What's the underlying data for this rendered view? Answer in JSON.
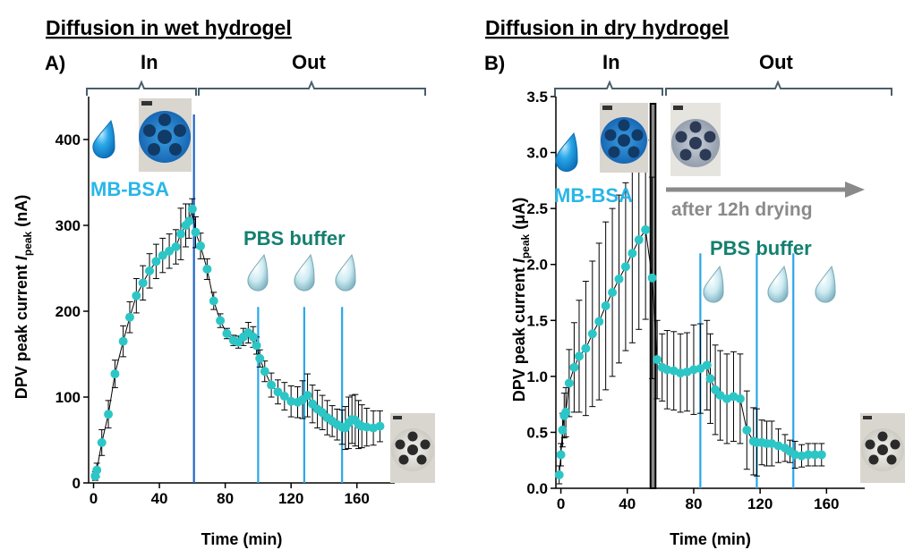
{
  "colors": {
    "marker": "#2cc6c6",
    "errorbar": "#000000",
    "line_in": "#1f66c8",
    "line_buffer": "#2aa7e8",
    "mbsa_text": "#29b6e8",
    "pbs_text": "#14806f",
    "brace": "#4a5e6a",
    "arrow": "#8a8a8a",
    "drop": "#1f9fe0",
    "drop_light": "#bfe4ee"
  },
  "panels": [
    {
      "title": "Diffusion in wet hydrogel",
      "letter": "A)",
      "phase_in": "In",
      "phase_out": "Out",
      "solution_label": "MB-BSA",
      "buffer_label": "PBS buffer"
    },
    {
      "title": "Diffusion in dry hydrogel",
      "letter": "B)",
      "phase_in": "In",
      "phase_out": "Out",
      "solution_label": "MB-BSA",
      "buffer_label": "PBS buffer",
      "drying_label": "after 12h drying"
    }
  ],
  "chart_data": [
    {
      "type": "scatter",
      "xlabel": "Time (min)",
      "ylabel_main": "DPV peak current ",
      "ylabel_italic": "I",
      "ylabel_sub": "peak",
      "ylabel_unit": " (nA)",
      "xlim": [
        -3,
        183
      ],
      "ylim": [
        0,
        450
      ],
      "xticks": [
        0,
        40,
        80,
        120,
        160
      ],
      "yticks": [
        0,
        100,
        200,
        300,
        400
      ],
      "vlines": [
        61,
        100,
        128,
        151
      ],
      "series": [
        {
          "x": [
            1,
            2,
            5,
            9,
            13,
            18,
            22,
            26,
            30,
            34,
            38,
            42,
            46,
            50,
            53,
            56,
            58,
            60,
            62,
            65,
            69,
            73,
            77,
            81,
            85,
            88,
            91,
            94,
            97,
            99,
            101,
            104,
            108,
            112,
            116,
            120,
            124,
            127,
            130,
            133,
            136,
            139,
            142,
            145,
            148,
            151,
            153,
            155,
            157,
            159,
            161,
            163,
            166,
            170,
            174
          ],
          "y": [
            8,
            15,
            47,
            80,
            127,
            165,
            193,
            218,
            233,
            247,
            258,
            265,
            270,
            275,
            290,
            300,
            305,
            319,
            292,
            276,
            249,
            212,
            189,
            174,
            166,
            164,
            170,
            175,
            170,
            160,
            145,
            130,
            114,
            106,
            101,
            95,
            94,
            97,
            102,
            92,
            86,
            82,
            76,
            72,
            68,
            65,
            64,
            70,
            74,
            73,
            68,
            66,
            65,
            64,
            66
          ],
          "err": [
            5,
            8,
            15,
            16,
            16,
            18,
            18,
            20,
            20,
            20,
            20,
            20,
            20,
            20,
            30,
            25,
            20,
            12,
            18,
            15,
            12,
            10,
            8,
            6,
            6,
            7,
            10,
            12,
            12,
            10,
            10,
            12,
            14,
            14,
            16,
            18,
            18,
            22,
            25,
            22,
            22,
            20,
            20,
            18,
            18,
            20,
            25,
            30,
            28,
            30,
            28,
            25,
            22,
            20,
            18
          ]
        }
      ]
    },
    {
      "type": "scatter",
      "xlabel": "Time (min)",
      "ylabel_main": "DPV peak current ",
      "ylabel_italic": "I",
      "ylabel_sub": "peak",
      "ylabel_unit": " (μA)",
      "xlim": [
        -3,
        183
      ],
      "ylim": [
        0,
        3.5
      ],
      "xticks": [
        0,
        40,
        80,
        120,
        160
      ],
      "yticks": [
        0.0,
        0.5,
        1.0,
        1.5,
        2.0,
        2.5,
        3.0,
        3.5
      ],
      "yticklabels": [
        "0.0",
        "0.5",
        "1.0",
        "1.5",
        "2.0",
        "2.5",
        "3.0",
        "3.5"
      ],
      "vlines": [
        84,
        118,
        140
      ],
      "drying_gap": [
        54,
        57
      ],
      "series": [
        {
          "x": [
            -1,
            0,
            1,
            2,
            3,
            5,
            8,
            11,
            15,
            19,
            23,
            27,
            31,
            35,
            39,
            43,
            47,
            51,
            55,
            58,
            61,
            64,
            68,
            72,
            76,
            80,
            84,
            88,
            90,
            93,
            96,
            100,
            104,
            108,
            112,
            116,
            118,
            121,
            124,
            127,
            131,
            135,
            138,
            141,
            145,
            149,
            153,
            157
          ],
          "y": [
            0.12,
            0.3,
            0.52,
            0.65,
            0.68,
            0.94,
            1.08,
            1.18,
            1.25,
            1.38,
            1.49,
            1.63,
            1.75,
            1.87,
            1.98,
            2.1,
            2.22,
            2.31,
            1.88,
            1.15,
            1.08,
            1.06,
            1.05,
            1.03,
            1.04,
            1.06,
            1.07,
            1.1,
            0.98,
            0.88,
            0.83,
            0.8,
            0.82,
            0.8,
            0.52,
            0.42,
            0.41,
            0.41,
            0.4,
            0.4,
            0.38,
            0.36,
            0.33,
            0.3,
            0.29,
            0.3,
            0.3,
            0.3
          ],
          "err": [
            0.08,
            0.1,
            0.15,
            0.2,
            0.22,
            0.3,
            0.4,
            0.5,
            0.6,
            0.65,
            0.7,
            0.75,
            0.75,
            0.75,
            0.75,
            0.8,
            0.8,
            0.8,
            0.9,
            0.35,
            0.3,
            0.35,
            0.35,
            0.35,
            0.35,
            0.4,
            0.4,
            0.4,
            0.4,
            0.4,
            0.4,
            0.4,
            0.4,
            0.4,
            0.35,
            0.3,
            0.3,
            0.2,
            0.2,
            0.2,
            0.15,
            0.12,
            0.1,
            0.12,
            0.1,
            0.1,
            0.1,
            0.1
          ]
        }
      ]
    }
  ]
}
